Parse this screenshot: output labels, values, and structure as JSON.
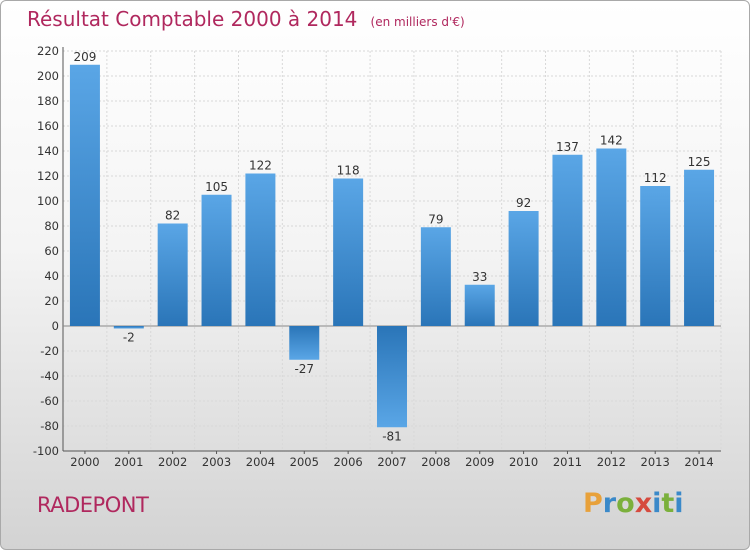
{
  "title": "Résultat Comptable 2000 à 2014",
  "unit_note": "(en milliers d'€)",
  "commune": "RADEPONT",
  "logo": {
    "letters": [
      "P",
      "r",
      "o",
      "x",
      "i",
      "t",
      "i"
    ],
    "colors": [
      "#e8a13a",
      "#3a89c9",
      "#7bb03c",
      "#d64a3e",
      "#3a89c9",
      "#7bb03c",
      "#3a89c9"
    ]
  },
  "chart_data": {
    "type": "bar",
    "categories": [
      "2000",
      "2001",
      "2002",
      "2003",
      "2004",
      "2005",
      "2006",
      "2007",
      "2008",
      "2009",
      "2010",
      "2011",
      "2012",
      "2013",
      "2014"
    ],
    "values": [
      209,
      -2,
      82,
      105,
      122,
      -27,
      118,
      -81,
      79,
      33,
      92,
      137,
      142,
      112,
      125
    ],
    "ylim": [
      -100,
      220
    ],
    "yticks": [
      -100,
      -80,
      -60,
      -40,
      -20,
      0,
      20,
      40,
      60,
      80,
      100,
      120,
      140,
      160,
      180,
      200,
      220
    ],
    "grid": true,
    "bar_color": "#3d8fd3"
  }
}
